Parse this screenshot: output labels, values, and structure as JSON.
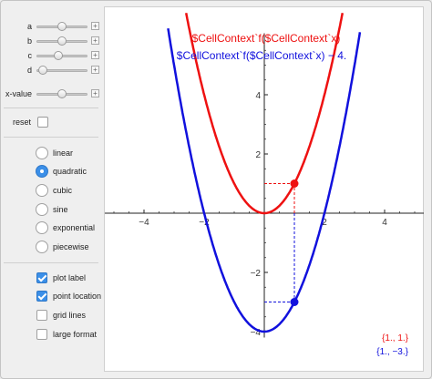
{
  "sliders": [
    {
      "label": "a",
      "value": 0.5
    },
    {
      "label": "b",
      "value": 0.5
    },
    {
      "label": "c",
      "value": 0.42
    },
    {
      "label": "d",
      "value": 0.05
    },
    {
      "label": "x-value",
      "value": 0.5
    }
  ],
  "reset_label": "reset",
  "function_types": [
    {
      "label": "linear",
      "selected": false
    },
    {
      "label": "quadratic",
      "selected": true
    },
    {
      "label": "cubic",
      "selected": false
    },
    {
      "label": "sine",
      "selected": false
    },
    {
      "label": "exponential",
      "selected": false
    },
    {
      "label": "piecewise",
      "selected": false
    }
  ],
  "checkboxes": [
    {
      "label": "plot label",
      "checked": true
    },
    {
      "label": "point location",
      "checked": true
    },
    {
      "label": "grid lines",
      "checked": false
    },
    {
      "label": "large format",
      "checked": false
    }
  ],
  "plus_glyph": "+",
  "plot": {
    "label_red": "$CellContext`f($CellContext`x)",
    "label_blue": "$CellContext`f($CellContext`x) − 4.",
    "point_red_label": "{1., 1.}",
    "point_blue_label": "{1., −3.}",
    "colors": {
      "red": "#ee1111",
      "blue": "#1111dd",
      "axis": "#222222"
    }
  },
  "chart_data": {
    "type": "line",
    "title": "",
    "xlim": [
      -5,
      5
    ],
    "ylim": [
      -4.2,
      6.2
    ],
    "xticks": [
      -4,
      -2,
      2,
      4
    ],
    "yticks": [
      -4,
      -2,
      2,
      4
    ],
    "xtick_labels": [
      "−4",
      "−2",
      "2",
      "4"
    ],
    "ytick_labels": [
      "−4",
      "−2",
      "2",
      "4"
    ],
    "grid": false,
    "series": [
      {
        "name": "$CellContext`f($CellContext`x)",
        "formula": "x^2",
        "color": "#ee1111"
      },
      {
        "name": "$CellContext`f($CellContext`x) − 4.",
        "formula": "x^2 - 4",
        "color": "#1111dd"
      }
    ],
    "points": [
      {
        "x": 1,
        "y": 1,
        "color": "#ee1111"
      },
      {
        "x": 1,
        "y": -3,
        "color": "#1111dd"
      }
    ]
  }
}
